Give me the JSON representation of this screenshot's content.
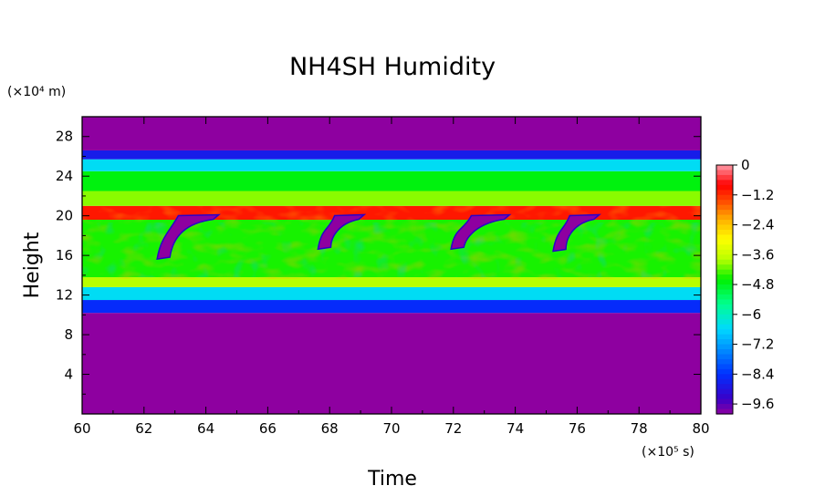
{
  "chart_data": {
    "type": "heatmap",
    "title": "NH4SH Humidity",
    "xlabel": "Time",
    "ylabel": "Height",
    "x_unit": "(×10⁵ s)",
    "y_unit": "(×10⁴ m)",
    "xlim": [
      60,
      80
    ],
    "ylim": [
      0,
      30
    ],
    "x_ticks": [
      60,
      62,
      64,
      66,
      68,
      70,
      72,
      74,
      76,
      78,
      80
    ],
    "y_ticks": [
      4,
      8,
      12,
      16,
      20,
      24,
      28
    ],
    "colorbar": {
      "range": [
        -10,
        0
      ],
      "tick_values": [
        0,
        -1.2,
        -2.4,
        -3.6,
        -4.8,
        -6,
        -7.2,
        -8.4,
        -9.6
      ],
      "tick_labels": [
        "0",
        "−1.2",
        "−2.4",
        "−3.6",
        "−4.8",
        "−6",
        "−7.2",
        "−8.4",
        "−9.6"
      ]
    },
    "layers": [
      {
        "y": [
          0,
          10.2
        ],
        "value": -10
      },
      {
        "y": [
          10.2,
          11.5
        ],
        "value": -8.5
      },
      {
        "y": [
          11.5,
          12.8
        ],
        "value": -6.5
      },
      {
        "y": [
          12.8,
          13.8
        ],
        "value": -3.8
      },
      {
        "y": [
          13.8,
          19.6
        ],
        "value": -4.5
      },
      {
        "y": [
          19.6,
          21.0
        ],
        "value": -1.0
      },
      {
        "y": [
          21.0,
          22.5
        ],
        "value": -4.0
      },
      {
        "y": [
          22.5,
          24.5
        ],
        "value": -4.7
      },
      {
        "y": [
          24.5,
          25.7
        ],
        "value": -6.5
      },
      {
        "y": [
          25.7,
          26.6
        ],
        "value": -8.8
      },
      {
        "y": [
          26.6,
          30
        ],
        "value": -10
      }
    ],
    "dry_plumes": [
      {
        "t_base": 62.6,
        "t_top": 64.3,
        "y_base": 16,
        "y_top": 20.2
      },
      {
        "t_base": 67.8,
        "t_top": 69.0,
        "y_base": 17,
        "y_top": 20.2
      },
      {
        "t_base": 72.1,
        "t_top": 73.7,
        "y_base": 17,
        "y_top": 20.2
      },
      {
        "t_base": 75.4,
        "t_top": 76.6,
        "y_base": 16.8,
        "y_top": 20.2
      }
    ]
  }
}
